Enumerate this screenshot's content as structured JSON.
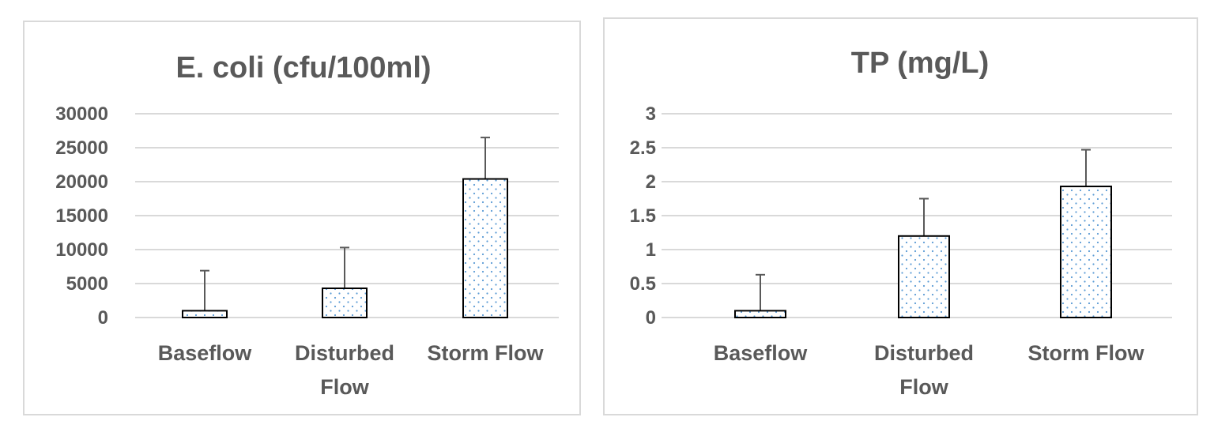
{
  "chart_data": [
    {
      "type": "bar",
      "title": "E. coli (cfu/100ml)",
      "categories": [
        [
          "Baseflow"
        ],
        [
          "Disturbed",
          "Flow"
        ],
        [
          "Storm Flow"
        ]
      ],
      "values": [
        1000,
        4300,
        20400
      ],
      "error_upper": [
        6900,
        10300,
        26500
      ],
      "ylim": [
        0,
        30000
      ],
      "yticks": [
        0,
        5000,
        10000,
        15000,
        20000,
        25000,
        30000
      ],
      "ytick_labels": [
        "0",
        "5000",
        "10000",
        "15000",
        "20000",
        "25000",
        "30000"
      ],
      "grid": true,
      "legend": "none",
      "bar_fill": "dotted",
      "colors": {
        "bar_edge": "#000000",
        "dots": "#5b9bd5",
        "grid": "#d9d9d9",
        "error_bar": "#595959",
        "text": "#595959"
      }
    },
    {
      "type": "bar",
      "title": "TP (mg/L)",
      "categories": [
        [
          "Baseflow"
        ],
        [
          "Disturbed",
          "Flow"
        ],
        [
          "Storm Flow"
        ]
      ],
      "values": [
        0.1,
        1.2,
        1.93
      ],
      "error_upper": [
        0.63,
        1.75,
        2.47
      ],
      "ylim": [
        0,
        3
      ],
      "yticks": [
        0,
        0.5,
        1,
        1.5,
        2,
        2.5,
        3
      ],
      "ytick_labels": [
        "0",
        "0.5",
        "1",
        "1.5",
        "2",
        "2.5",
        "3"
      ],
      "grid": true,
      "legend": "none",
      "bar_fill": "dotted",
      "colors": {
        "bar_edge": "#000000",
        "dots": "#5b9bd5",
        "grid": "#d9d9d9",
        "error_bar": "#595959",
        "text": "#595959"
      }
    }
  ]
}
